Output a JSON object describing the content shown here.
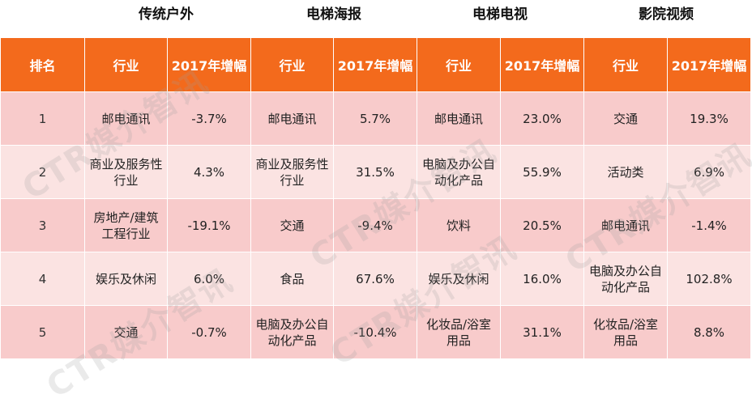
{
  "groups": [
    "传统户外",
    "电梯海报",
    "电梯电视",
    "影院视频"
  ],
  "headers": {
    "rank": "排名",
    "industry": "行业",
    "growth": "2017年增幅"
  },
  "rows": [
    {
      "rank": "1",
      "cells": [
        [
          "邮电通讯",
          "-3.7%"
        ],
        [
          "邮电通讯",
          "5.7%"
        ],
        [
          "邮电通讯",
          "23.0%"
        ],
        [
          "交通",
          "19.3%"
        ]
      ]
    },
    {
      "rank": "2",
      "cells": [
        [
          "商业及服务性行业",
          "4.3%"
        ],
        [
          "商业及服务性行业",
          "31.5%"
        ],
        [
          "电脑及办公自动化产品",
          "55.9%"
        ],
        [
          "活动类",
          "6.9%"
        ]
      ]
    },
    {
      "rank": "3",
      "cells": [
        [
          "房地产/建筑工程行业",
          "-19.1%"
        ],
        [
          "交通",
          "-9.4%"
        ],
        [
          "饮料",
          "20.5%"
        ],
        [
          "邮电通讯",
          "-1.4%"
        ]
      ]
    },
    {
      "rank": "4",
      "cells": [
        [
          "娱乐及休闲",
          "6.0%"
        ],
        [
          "食品",
          "67.6%"
        ],
        [
          "娱乐及休闲",
          "16.0%"
        ],
        [
          "电脑及办公自动化产品",
          "102.8%"
        ]
      ]
    },
    {
      "rank": "5",
      "cells": [
        [
          "交通",
          "-0.7%"
        ],
        [
          "电脑及办公自动化产品",
          "-10.4%"
        ],
        [
          "化妆品/浴室用品",
          "31.1%"
        ],
        [
          "化妆品/浴室用品",
          "8.8%"
        ]
      ]
    }
  ],
  "watermark": "CTR媒介智讯",
  "colors": {
    "header": "#f36a1c",
    "row_odd": "#f8cbcb",
    "row_even": "#fbe3e2"
  }
}
